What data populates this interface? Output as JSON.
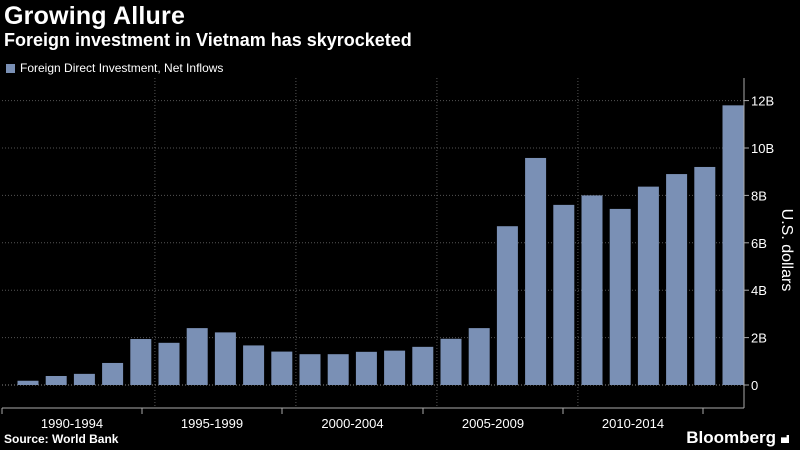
{
  "header": {
    "title": "Growing Allure",
    "subtitle": "Foreign investment in Vietnam has skyrocketed"
  },
  "footer": {
    "source": "Source: World Bank",
    "brand": "Bloomberg"
  },
  "colors": {
    "bar": "#7a90b5",
    "background": "#000000",
    "grid": "#555555"
  },
  "chart_data": {
    "type": "bar",
    "categories": [
      "1990",
      "1991",
      "1992",
      "1993",
      "1994",
      "1995",
      "1996",
      "1997",
      "1998",
      "1999",
      "2000",
      "2001",
      "2002",
      "2003",
      "2004",
      "2005",
      "2006",
      "2007",
      "2008",
      "2009",
      "2010",
      "2011",
      "2012",
      "2013",
      "2014",
      "2015"
    ],
    "series": [
      {
        "name": "Foreign Direct Investment, Net Inflows",
        "values": [
          0.18,
          0.38,
          0.47,
          0.93,
          1.94,
          1.78,
          2.4,
          2.22,
          1.67,
          1.41,
          1.3,
          1.3,
          1.4,
          1.45,
          1.61,
          1.95,
          2.4,
          6.7,
          9.58,
          7.6,
          8.0,
          7.43,
          8.37,
          8.9,
          9.2,
          11.8
        ]
      }
    ],
    "x_tick_labels": [
      "1990-1994",
      "1995-1999",
      "2000-2004",
      "2005-2009",
      "2010-2014"
    ],
    "y_ticks": [
      0,
      2,
      4,
      6,
      8,
      10,
      12
    ],
    "y_tick_labels": [
      "0",
      "2B",
      "4B",
      "6B",
      "8B",
      "10B",
      "12B"
    ],
    "ylim": [
      -1.2,
      13
    ],
    "ylabel": "U.S. dollars",
    "xlabel": "",
    "title": "Growing Allure",
    "legend_position": "top-left",
    "grid": true
  }
}
